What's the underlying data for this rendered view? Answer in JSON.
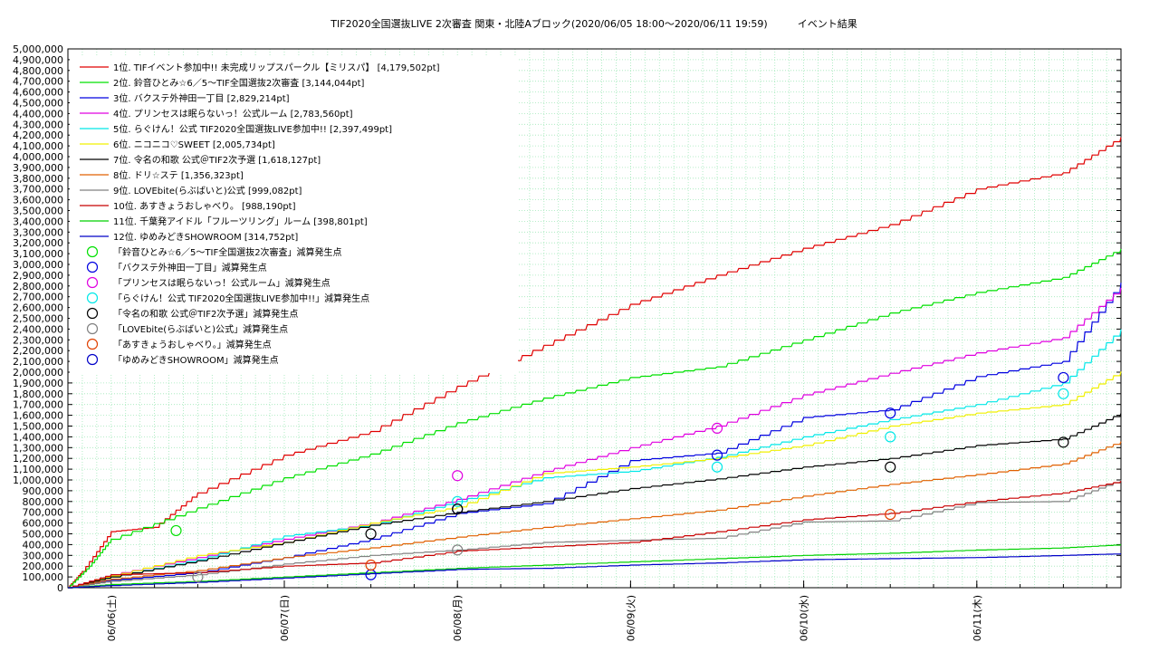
{
  "chart_data": {
    "type": "line",
    "title": "TIF2020全国選抜LIVE 2次審査 関東・北陸Aブロック(2020/06/05 18:00〜2020/06/11 19:59)　　　イベント結果",
    "ylim": [
      0,
      5000000
    ],
    "y_ticks": [
      "0",
      "100,000",
      "200,000",
      "300,000",
      "400,000",
      "500,000",
      "600,000",
      "700,000",
      "800,000",
      "900,000",
      "1,000,000",
      "1,100,000",
      "1,200,000",
      "1,300,000",
      "1,400,000",
      "1,500,000",
      "1,600,000",
      "1,700,000",
      "1,800,000",
      "1,900,000",
      "2,000,000",
      "2,100,000",
      "2,200,000",
      "2,300,000",
      "2,400,000",
      "2,500,000",
      "2,600,000",
      "2,700,000",
      "2,800,000",
      "2,900,000",
      "3,000,000",
      "3,100,000",
      "3,200,000",
      "3,300,000",
      "3,400,000",
      "3,500,000",
      "3,600,000",
      "3,700,000",
      "3,800,000",
      "3,900,000",
      "4,000,000",
      "4,100,000",
      "4,200,000",
      "4,300,000",
      "4,400,000",
      "4,500,000",
      "4,600,000",
      "4,700,000",
      "4,800,000",
      "4,900,000",
      "5,000,000"
    ],
    "x_start": "2020-06-05 18:00",
    "x_end": "2020-06-11 19:59",
    "x_ticks": [
      {
        "date": "2020-06-06 00:00",
        "label": "06/06(土)"
      },
      {
        "date": "2020-06-07 00:00",
        "label": "06/07(日)"
      },
      {
        "date": "2020-06-08 00:00",
        "label": "06/08(月)"
      },
      {
        "date": "2020-06-09 00:00",
        "label": "06/09(火)"
      },
      {
        "date": "2020-06-10 00:00",
        "label": "06/10(水)"
      },
      {
        "date": "2020-06-11 00:00",
        "label": "06/11(木)"
      }
    ],
    "grid": true,
    "legend_position": "top-left",
    "series": [
      {
        "name": "1位. TIFイベント参加中!! 未完成リップスパークル【ミリスパ】 [4,179,502pt]",
        "color": "#e00000",
        "points": [
          [
            "2020-06-05 18:00",
            0
          ],
          [
            "2020-06-05 20:00",
            150000
          ],
          [
            "2020-06-06 00:00",
            520000
          ],
          [
            "2020-06-06 06:00",
            560000
          ],
          [
            "2020-06-06 12:00",
            880000
          ],
          [
            "2020-06-07 00:00",
            1230000
          ],
          [
            "2020-06-07 12:00",
            1450000
          ],
          [
            "2020-06-08 00:00",
            1870000
          ],
          [
            "2020-06-08 12:00",
            2250000
          ],
          [
            "2020-06-09 00:00",
            2630000
          ],
          [
            "2020-06-09 12:00",
            2900000
          ],
          [
            "2020-06-10 00:00",
            3150000
          ],
          [
            "2020-06-10 12:00",
            3370000
          ],
          [
            "2020-06-11 00:00",
            3700000
          ],
          [
            "2020-06-11 12:00",
            3850000
          ],
          [
            "2020-06-11 19:59",
            4179502
          ]
        ]
      },
      {
        "name": "2位. 鈴音ひとみ☆6／5〜TIF全国選抜2次審査 [3,144,044pt]",
        "color": "#00e000",
        "points": [
          [
            "2020-06-05 18:00",
            0
          ],
          [
            "2020-06-05 21:00",
            200000
          ],
          [
            "2020-06-06 00:00",
            450000
          ],
          [
            "2020-06-06 12:00",
            740000
          ],
          [
            "2020-06-07 00:00",
            1020000
          ],
          [
            "2020-06-07 12:00",
            1240000
          ],
          [
            "2020-06-08 00:00",
            1530000
          ],
          [
            "2020-06-08 12:00",
            1760000
          ],
          [
            "2020-06-09 00:00",
            1950000
          ],
          [
            "2020-06-09 12:00",
            2050000
          ],
          [
            "2020-06-10 00:00",
            2300000
          ],
          [
            "2020-06-10 12:00",
            2550000
          ],
          [
            "2020-06-11 00:00",
            2740000
          ],
          [
            "2020-06-11 12:00",
            2880000
          ],
          [
            "2020-06-11 19:59",
            3144044
          ]
        ]
      },
      {
        "name": "3位. バクステ外神田一丁目 [2,829,214pt]",
        "color": "#0000e0",
        "points": [
          [
            "2020-06-05 18:00",
            0
          ],
          [
            "2020-06-06 00:00",
            70000
          ],
          [
            "2020-06-06 12:00",
            140000
          ],
          [
            "2020-06-07 00:00",
            280000
          ],
          [
            "2020-06-07 12:00",
            450000
          ],
          [
            "2020-06-08 00:00",
            690000
          ],
          [
            "2020-06-08 12:00",
            780000
          ],
          [
            "2020-06-09 00:00",
            1180000
          ],
          [
            "2020-06-09 12:00",
            1250000
          ],
          [
            "2020-06-10 00:00",
            1580000
          ],
          [
            "2020-06-10 12:00",
            1650000
          ],
          [
            "2020-06-11 00:00",
            1960000
          ],
          [
            "2020-06-11 12:00",
            2100000
          ],
          [
            "2020-06-11 19:59",
            2829214
          ]
        ]
      },
      {
        "name": "4位. プリンセスは眠らないっ！公式ルーム [2,783,560pt]",
        "color": "#e000e0",
        "points": [
          [
            "2020-06-05 18:00",
            0
          ],
          [
            "2020-06-06 00:00",
            120000
          ],
          [
            "2020-06-06 12:00",
            280000
          ],
          [
            "2020-06-07 00:00",
            450000
          ],
          [
            "2020-06-07 12:00",
            600000
          ],
          [
            "2020-06-08 00:00",
            820000
          ],
          [
            "2020-06-08 12:00",
            1080000
          ],
          [
            "2020-06-09 00:00",
            1300000
          ],
          [
            "2020-06-09 12:00",
            1500000
          ],
          [
            "2020-06-10 00:00",
            1790000
          ],
          [
            "2020-06-10 12:00",
            1990000
          ],
          [
            "2020-06-11 00:00",
            2180000
          ],
          [
            "2020-06-11 12:00",
            2320000
          ],
          [
            "2020-06-11 19:59",
            2783560
          ]
        ]
      },
      {
        "name": "5位. らぐけん！公式 TIF2020全国選抜LIVE参加中!! [2,397,499pt]",
        "color": "#00e8e8",
        "points": [
          [
            "2020-06-05 18:00",
            0
          ],
          [
            "2020-06-06 00:00",
            100000
          ],
          [
            "2020-06-06 12:00",
            260000
          ],
          [
            "2020-06-07 00:00",
            480000
          ],
          [
            "2020-06-07 12:00",
            580000
          ],
          [
            "2020-06-08 00:00",
            800000
          ],
          [
            "2020-06-08 12:00",
            1020000
          ],
          [
            "2020-06-09 00:00",
            1080000
          ],
          [
            "2020-06-09 12:00",
            1210000
          ],
          [
            "2020-06-10 00:00",
            1400000
          ],
          [
            "2020-06-10 12:00",
            1560000
          ],
          [
            "2020-06-11 00:00",
            1700000
          ],
          [
            "2020-06-11 12:00",
            1900000
          ],
          [
            "2020-06-11 19:59",
            2397499
          ]
        ]
      },
      {
        "name": "6位. ニコニコ♡SWEET [2,005,734pt]",
        "color": "#f0f000",
        "points": [
          [
            "2020-06-05 18:00",
            0
          ],
          [
            "2020-06-06 00:00",
            110000
          ],
          [
            "2020-06-06 12:00",
            300000
          ],
          [
            "2020-06-07 00:00",
            420000
          ],
          [
            "2020-06-07 12:00",
            600000
          ],
          [
            "2020-06-08 00:00",
            750000
          ],
          [
            "2020-06-08 12:00",
            1060000
          ],
          [
            "2020-06-09 00:00",
            1120000
          ],
          [
            "2020-06-09 12:00",
            1200000
          ],
          [
            "2020-06-10 00:00",
            1320000
          ],
          [
            "2020-06-10 12:00",
            1500000
          ],
          [
            "2020-06-11 00:00",
            1620000
          ],
          [
            "2020-06-11 12:00",
            1700000
          ],
          [
            "2020-06-11 19:59",
            2005734
          ]
        ]
      },
      {
        "name": "7位. 令名の和歌 公式＠TIF2次予選 [1,618,127pt]",
        "color": "#000000",
        "points": [
          [
            "2020-06-05 18:00",
            0
          ],
          [
            "2020-06-06 00:00",
            100000
          ],
          [
            "2020-06-06 12:00",
            250000
          ],
          [
            "2020-06-07 00:00",
            420000
          ],
          [
            "2020-06-07 12:00",
            580000
          ],
          [
            "2020-06-08 00:00",
            700000
          ],
          [
            "2020-06-08 12:00",
            800000
          ],
          [
            "2020-06-09 00:00",
            920000
          ],
          [
            "2020-06-09 12:00",
            1010000
          ],
          [
            "2020-06-10 00:00",
            1120000
          ],
          [
            "2020-06-10 12:00",
            1200000
          ],
          [
            "2020-06-11 00:00",
            1320000
          ],
          [
            "2020-06-11 12:00",
            1380000
          ],
          [
            "2020-06-11 19:59",
            1618127
          ]
        ]
      },
      {
        "name": "8位. ドリ☆ステ [1,356,323pt]",
        "color": "#e06000",
        "points": [
          [
            "2020-06-05 18:00",
            0
          ],
          [
            "2020-06-06 00:00",
            80000
          ],
          [
            "2020-06-06 12:00",
            160000
          ],
          [
            "2020-06-07 00:00",
            280000
          ],
          [
            "2020-06-07 12:00",
            370000
          ],
          [
            "2020-06-08 00:00",
            470000
          ],
          [
            "2020-06-08 12:00",
            560000
          ],
          [
            "2020-06-09 00:00",
            640000
          ],
          [
            "2020-06-09 12:00",
            720000
          ],
          [
            "2020-06-10 00:00",
            850000
          ],
          [
            "2020-06-10 12:00",
            960000
          ],
          [
            "2020-06-11 00:00",
            1050000
          ],
          [
            "2020-06-11 12:00",
            1150000
          ],
          [
            "2020-06-11 19:59",
            1356323
          ]
        ]
      },
      {
        "name": "9位. LOVEbite(らぶばいと)公式 [999,082pt]",
        "color": "#808080",
        "points": [
          [
            "2020-06-05 18:00",
            0
          ],
          [
            "2020-06-06 00:00",
            60000
          ],
          [
            "2020-06-06 12:00",
            120000
          ],
          [
            "2020-06-07 00:00",
            220000
          ],
          [
            "2020-06-07 12:00",
            300000
          ],
          [
            "2020-06-08 00:00",
            350000
          ],
          [
            "2020-06-08 12:00",
            420000
          ],
          [
            "2020-06-09 00:00",
            440000
          ],
          [
            "2020-06-09 12:00",
            460000
          ],
          [
            "2020-06-10 00:00",
            610000
          ],
          [
            "2020-06-10 12:00",
            620000
          ],
          [
            "2020-06-11 00:00",
            790000
          ],
          [
            "2020-06-11 12:00",
            800000
          ],
          [
            "2020-06-11 19:59",
            999082
          ]
        ]
      },
      {
        "name": "10位. あすきょうおしゃべり。 [988,190pt]",
        "color": "#c80000",
        "points": [
          [
            "2020-06-05 18:00",
            0
          ],
          [
            "2020-06-06 00:00",
            120000
          ],
          [
            "2020-06-06 12:00",
            140000
          ],
          [
            "2020-06-07 00:00",
            200000
          ],
          [
            "2020-06-07 12:00",
            230000
          ],
          [
            "2020-06-08 00:00",
            340000
          ],
          [
            "2020-06-08 12:00",
            380000
          ],
          [
            "2020-06-09 00:00",
            420000
          ],
          [
            "2020-06-09 12:00",
            520000
          ],
          [
            "2020-06-10 00:00",
            630000
          ],
          [
            "2020-06-10 12:00",
            690000
          ],
          [
            "2020-06-11 00:00",
            800000
          ],
          [
            "2020-06-11 12:00",
            880000
          ],
          [
            "2020-06-11 19:59",
            988190
          ]
        ]
      },
      {
        "name": "11位. 千葉発アイドル「フルーツリング」ルーム [398,801pt]",
        "color": "#00d000",
        "points": [
          [
            "2020-06-05 18:00",
            0
          ],
          [
            "2020-06-06 00:00",
            30000
          ],
          [
            "2020-06-06 12:00",
            60000
          ],
          [
            "2020-06-07 00:00",
            100000
          ],
          [
            "2020-06-07 12:00",
            140000
          ],
          [
            "2020-06-08 00:00",
            180000
          ],
          [
            "2020-06-08 12:00",
            210000
          ],
          [
            "2020-06-09 00:00",
            240000
          ],
          [
            "2020-06-09 12:00",
            270000
          ],
          [
            "2020-06-10 00:00",
            300000
          ],
          [
            "2020-06-10 12:00",
            320000
          ],
          [
            "2020-06-11 00:00",
            350000
          ],
          [
            "2020-06-11 12:00",
            370000
          ],
          [
            "2020-06-11 19:59",
            398801
          ]
        ]
      },
      {
        "name": "12位. ゆめみどきSHOWROOM [314,752pt]",
        "color": "#0000c8",
        "points": [
          [
            "2020-06-05 18:00",
            0
          ],
          [
            "2020-06-06 00:00",
            20000
          ],
          [
            "2020-06-06 12:00",
            50000
          ],
          [
            "2020-06-07 00:00",
            90000
          ],
          [
            "2020-06-07 12:00",
            130000
          ],
          [
            "2020-06-08 00:00",
            170000
          ],
          [
            "2020-06-08 12:00",
            180000
          ],
          [
            "2020-06-09 00:00",
            210000
          ],
          [
            "2020-06-09 12:00",
            230000
          ],
          [
            "2020-06-10 00:00",
            260000
          ],
          [
            "2020-06-10 12:00",
            270000
          ],
          [
            "2020-06-11 00:00",
            280000
          ],
          [
            "2020-06-11 12:00",
            300000
          ],
          [
            "2020-06-11 19:59",
            314752
          ]
        ]
      }
    ],
    "marker_legend": [
      {
        "label": "「鈴音ひとみ☆6／5〜TIF全国選抜2次審査」減算発生点",
        "color": "#00e000"
      },
      {
        "label": "「バクステ外神田一丁目」減算発生点",
        "color": "#0000e0"
      },
      {
        "label": "「プリンセスは眠らないっ！公式ルーム」減算発生点",
        "color": "#e000e0"
      },
      {
        "label": "「らぐけん！公式 TIF2020全国選抜LIVE参加中!!」減算発生点",
        "color": "#00e8e8"
      },
      {
        "label": "「令名の和歌 公式＠TIF2次予選」減算発生点",
        "color": "#000000"
      },
      {
        "label": "「LOVEbite(らぶばいと)公式」減算発生点",
        "color": "#808080"
      },
      {
        "label": "「あすきょうおしゃべり。」減算発生点",
        "color": "#e04000"
      },
      {
        "label": "「ゆめみどきSHOWROOM」減算発生点",
        "color": "#0000c8"
      }
    ],
    "markers": [
      {
        "date": "2020-06-06 09:00",
        "value": 530000,
        "color": "#00e000"
      },
      {
        "date": "2020-06-07 12:00",
        "value": 120000,
        "color": "#0000e0"
      },
      {
        "date": "2020-06-08 00:00",
        "value": 730000,
        "color": "#0000e0"
      },
      {
        "date": "2020-06-09 12:00",
        "value": 1230000,
        "color": "#0000e0"
      },
      {
        "date": "2020-06-10 12:00",
        "value": 1620000,
        "color": "#0000e0"
      },
      {
        "date": "2020-06-11 12:00",
        "value": 1950000,
        "color": "#0000e0"
      },
      {
        "date": "2020-06-08 00:00",
        "value": 1040000,
        "color": "#e000e0"
      },
      {
        "date": "2020-06-09 12:00",
        "value": 1480000,
        "color": "#e000e0"
      },
      {
        "date": "2020-06-08 00:00",
        "value": 800000,
        "color": "#00e8e8"
      },
      {
        "date": "2020-06-09 12:00",
        "value": 1120000,
        "color": "#00e8e8"
      },
      {
        "date": "2020-06-10 12:00",
        "value": 1400000,
        "color": "#00e8e8"
      },
      {
        "date": "2020-06-11 12:00",
        "value": 1800000,
        "color": "#00e8e8"
      },
      {
        "date": "2020-06-07 12:00",
        "value": 500000,
        "color": "#000000"
      },
      {
        "date": "2020-06-08 00:00",
        "value": 730000,
        "color": "#000000"
      },
      {
        "date": "2020-06-10 12:00",
        "value": 1120000,
        "color": "#000000"
      },
      {
        "date": "2020-06-11 12:00",
        "value": 1350000,
        "color": "#000000"
      },
      {
        "date": "2020-06-08 00:00",
        "value": 350000,
        "color": "#808080"
      },
      {
        "date": "2020-06-06 12:00",
        "value": 100000,
        "color": "#808080"
      },
      {
        "date": "2020-06-07 12:00",
        "value": 210000,
        "color": "#e04000"
      },
      {
        "date": "2020-06-10 12:00",
        "value": 680000,
        "color": "#e04000"
      }
    ]
  }
}
